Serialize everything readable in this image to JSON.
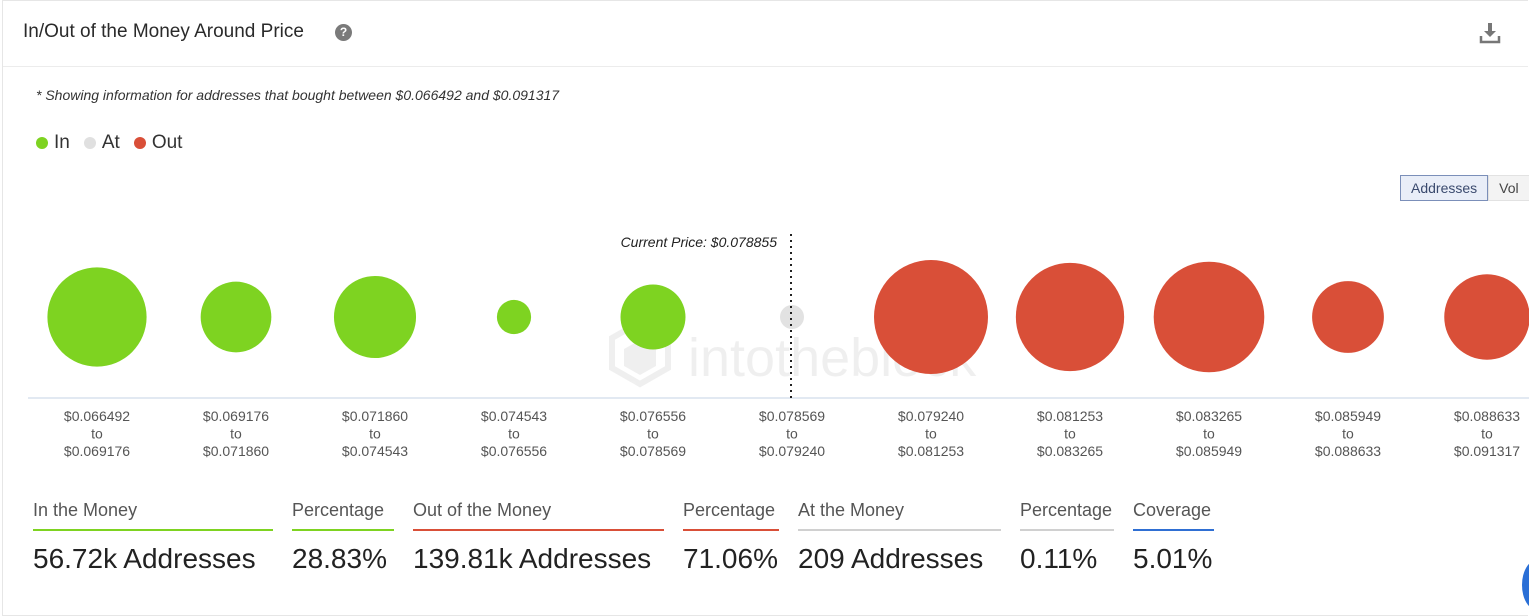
{
  "header": {
    "title": "In/Out of the Money Around Price",
    "help": "?"
  },
  "note": "* Showing information for addresses that bought between $0.066492 and $0.091317",
  "legend": [
    {
      "label": "In",
      "color": "#7ed321"
    },
    {
      "label": "At",
      "color": "#e0e0e0"
    },
    {
      "label": "Out",
      "color": "#d94f38"
    }
  ],
  "toggle": {
    "addresses": "Addresses",
    "volume": "Vol"
  },
  "watermark": "intotheblock",
  "chart_data": {
    "type": "bubble",
    "current_price_label": "Current Price: $0.078855",
    "current_price": 0.078855,
    "categories": [
      {
        "from": "$0.066492",
        "to_word": "to",
        "to": "$0.069176",
        "status": "in",
        "relative_size": 0.87
      },
      {
        "from": "$0.069176",
        "to_word": "to",
        "to": "$0.071860",
        "status": "in",
        "relative_size": 0.62
      },
      {
        "from": "$0.071860",
        "to_word": "to",
        "to": "$0.074543",
        "status": "in",
        "relative_size": 0.72
      },
      {
        "from": "$0.074543",
        "to_word": "to",
        "to": "$0.076556",
        "status": "in",
        "relative_size": 0.3
      },
      {
        "from": "$0.076556",
        "to_word": "to",
        "to": "$0.078569",
        "status": "in",
        "relative_size": 0.57
      },
      {
        "from": "$0.078569",
        "to_word": "to",
        "to": "$0.079240",
        "status": "at",
        "relative_size": 0.22
      },
      {
        "from": "$0.079240",
        "to_word": "to",
        "to": "$0.081253",
        "status": "out",
        "relative_size": 1.0
      },
      {
        "from": "$0.081253",
        "to_word": "to",
        "to": "$0.083265",
        "status": "out",
        "relative_size": 0.95
      },
      {
        "from": "$0.083265",
        "to_word": "to",
        "to": "$0.085949",
        "status": "out",
        "relative_size": 0.97
      },
      {
        "from": "$0.085949",
        "to_word": "to",
        "to": "$0.088633",
        "status": "out",
        "relative_size": 0.63
      },
      {
        "from": "$0.088633",
        "to_word": "to",
        "to": "$0.091317",
        "status": "out",
        "relative_size": 0.75
      }
    ]
  },
  "stats": [
    {
      "label": "In the Money",
      "value": "56.72k Addresses",
      "color": "#7ed321"
    },
    {
      "label": "Percentage",
      "value": "28.83%",
      "color": "#7ed321"
    },
    {
      "label": "Out of the Money",
      "value": "139.81k Addresses",
      "color": "#d94f38"
    },
    {
      "label": "Percentage",
      "value": "71.06%",
      "color": "#d94f38"
    },
    {
      "label": "At the Money",
      "value": "209 Addresses",
      "color": "#d0d0d0"
    },
    {
      "label": "Percentage",
      "value": "0.11%",
      "color": "#d0d0d0"
    },
    {
      "label": "Coverage",
      "value": "5.01%",
      "color": "#2f6fd3"
    }
  ]
}
